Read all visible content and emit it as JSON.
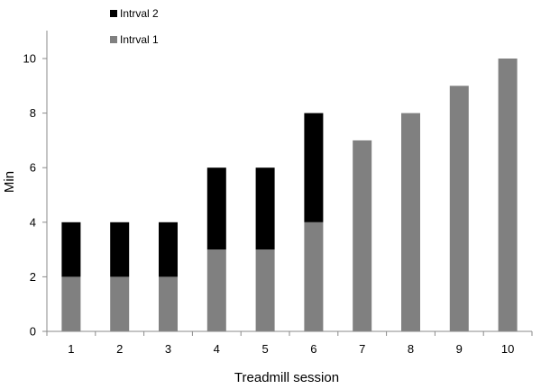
{
  "chart_data": {
    "type": "bar",
    "stacked": true,
    "categories": [
      "1",
      "2",
      "3",
      "4",
      "5",
      "6",
      "7",
      "8",
      "9",
      "10"
    ],
    "series": [
      {
        "name": "Intrval 1",
        "color": "#808080",
        "values": [
          2,
          2,
          2,
          3,
          3,
          4,
          7,
          8,
          9,
          10
        ]
      },
      {
        "name": "Intrval 2",
        "color": "#000000",
        "values": [
          2,
          2,
          2,
          3,
          3,
          4,
          0,
          0,
          0,
          0
        ]
      }
    ],
    "xlabel": "Treadmill session",
    "ylabel": "Min",
    "ylim": [
      0,
      11
    ],
    "yticks": [
      "0",
      "2",
      "4",
      "6",
      "8",
      "10"
    ],
    "grid": false,
    "legend_position": "top-left"
  }
}
